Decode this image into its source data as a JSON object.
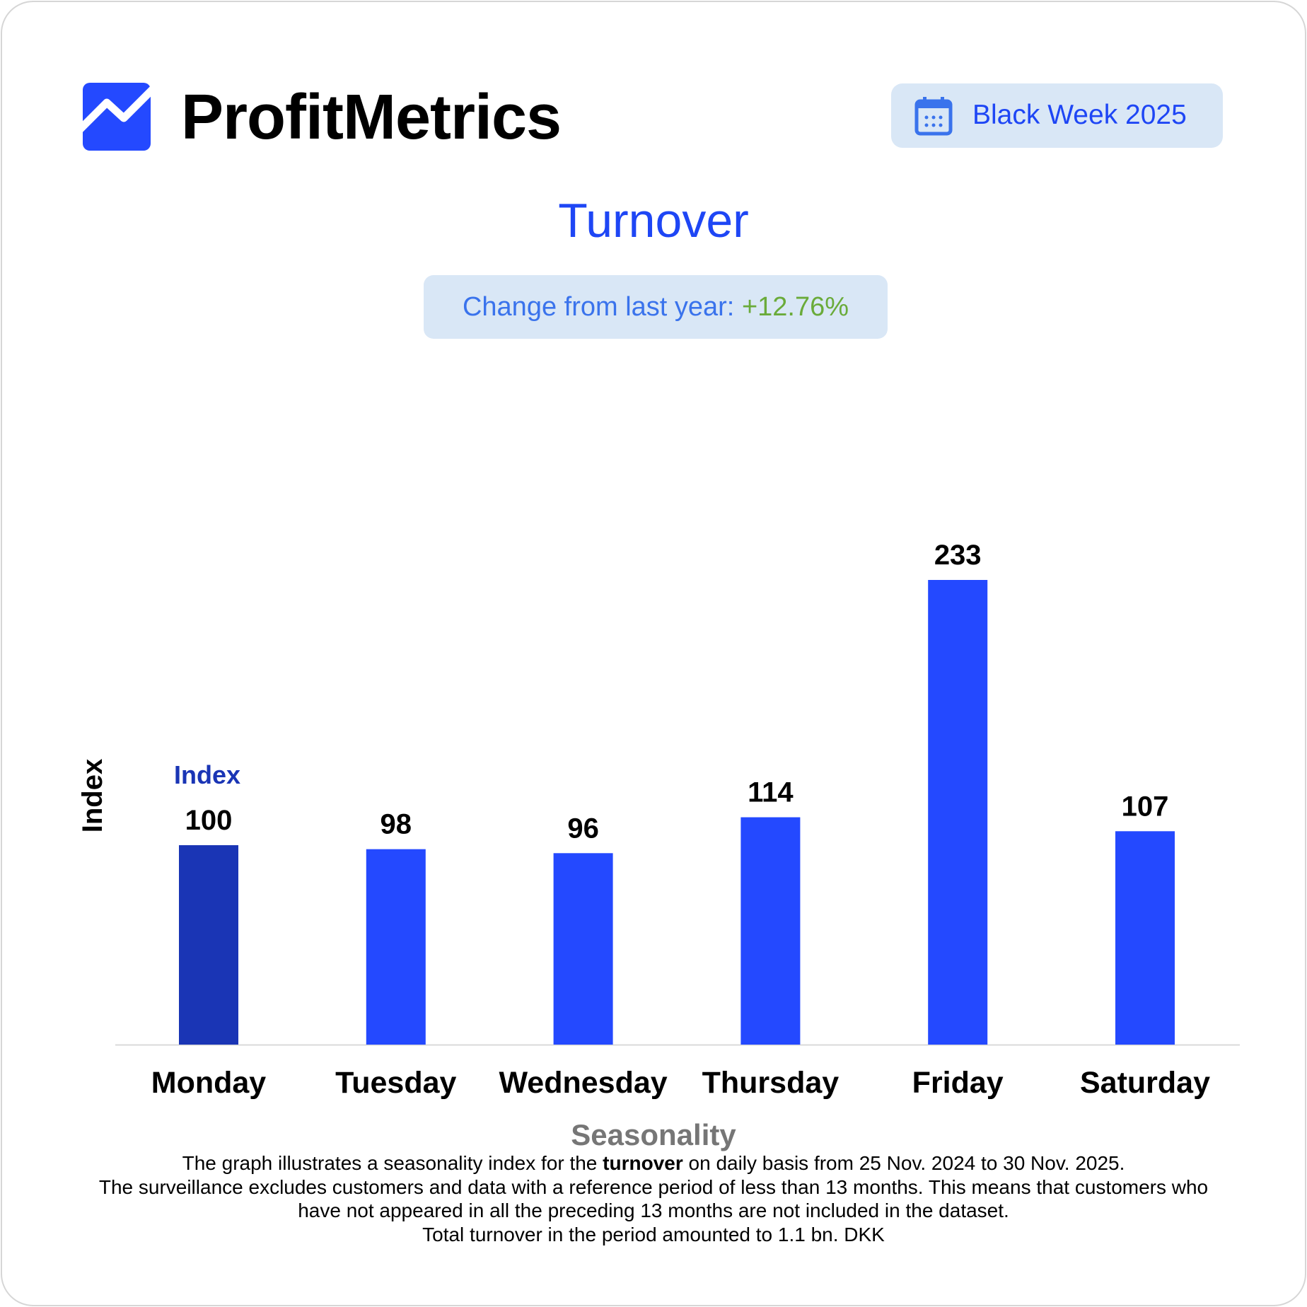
{
  "header": {
    "brand": "ProfitMetrics",
    "logo_icon": "trend-line-logo-icon",
    "period_badge": {
      "icon": "calendar-icon",
      "label": "Black Week 2025"
    }
  },
  "title": "Turnover",
  "change": {
    "label": "Change from last year:",
    "value": "+12.76%"
  },
  "colors": {
    "accent": "#2449ff",
    "highlight_bar": "#1a35b5",
    "badge_bg": "#d9e7f6",
    "positive": "#6aab3a"
  },
  "chart_data": {
    "type": "bar",
    "categories": [
      "Monday",
      "Tuesday",
      "Wednesday",
      "Thursday",
      "Friday",
      "Saturday"
    ],
    "values": [
      100,
      98,
      96,
      114,
      233,
      107
    ],
    "data_labels": [
      "100",
      "98",
      "96",
      "114",
      "233",
      "107"
    ],
    "ylabel": "Index",
    "annotation": "Index",
    "xlabel": "Seasonality",
    "ylim": [
      0,
      240
    ],
    "grid": false,
    "legend": "none"
  },
  "footnote": {
    "line1_pre": "The graph illustrates a seasonality index for the ",
    "line1_bold": "turnover",
    "line1_post": " on daily basis from 25 Nov. 2024 to 30 Nov. 2025.",
    "line2": "The surveillance excludes customers and data with a reference period of less than 13 months. This means that customers who",
    "line3": "have not appeared in all the preceding 13 months are not included in the dataset.",
    "line4": "Total turnover in the period amounted to 1.1 bn. DKK"
  }
}
